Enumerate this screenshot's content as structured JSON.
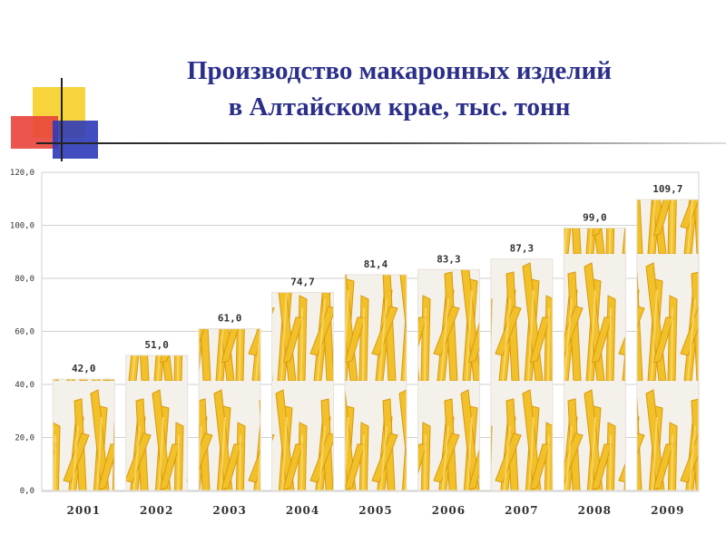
{
  "title": {
    "line1": "Производство макаронных изделий",
    "line2": "в Алтайском крае, тыс. тонн"
  },
  "colors": {
    "title": "#2b2f8a",
    "deco_yellow": "#f7d230",
    "deco_red": "#e8443a",
    "deco_blue": "#2e3bb8",
    "pasta": "#f2c028"
  },
  "chart_data": {
    "type": "bar",
    "title": "Производство макаронных изделий в Алтайском крае, тыс. тонн",
    "categories": [
      "2001",
      "2002",
      "2003",
      "2004",
      "2005",
      "2006",
      "2007",
      "2008",
      "2009"
    ],
    "values": [
      42.0,
      51.0,
      61.0,
      74.7,
      81.4,
      83.3,
      87.3,
      99.0,
      109.7
    ],
    "value_labels": [
      "42,0",
      "51,0",
      "61,0",
      "74,7",
      "81,4",
      "83,3",
      "87,3",
      "99,0",
      "109,7"
    ],
    "y_ticks": [
      0,
      20,
      40,
      60,
      80,
      100,
      120
    ],
    "y_tick_labels": [
      "0,0",
      "20,0",
      "40,0",
      "60,0",
      "80,0",
      "100,0",
      "120,0"
    ],
    "ylim": [
      0,
      120
    ],
    "grid": true,
    "bar_fill": "pasta image pattern"
  }
}
